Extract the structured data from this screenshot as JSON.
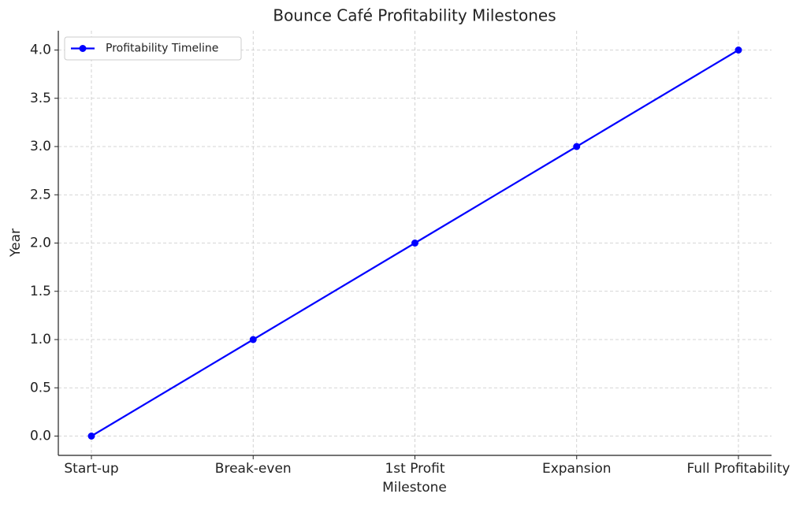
{
  "chart_data": {
    "type": "line",
    "title": "Bounce Café Profitability Milestones",
    "x_label": "Milestone",
    "y_label": "Year",
    "categories": [
      "Start-up",
      "Break-even",
      "1st Profit",
      "Expansion",
      "Full Profitability"
    ],
    "series": [
      {
        "name": "Profitability Timeline",
        "color": "#0000ff",
        "values": [
          0,
          1,
          2,
          3,
          4
        ]
      }
    ],
    "ylim": [
      -0.2,
      4.2
    ],
    "yticks": [
      {
        "value": 0,
        "label": "0.0"
      },
      0.5,
      {
        "value": 1,
        "label": "1.0"
      },
      1.5,
      {
        "value": 2,
        "label": "2.0"
      },
      2.5,
      {
        "value": 3,
        "label": "3.0"
      },
      3.5,
      {
        "value": 4,
        "label": "4.0"
      }
    ],
    "grid": true,
    "legend": "upper-left"
  }
}
